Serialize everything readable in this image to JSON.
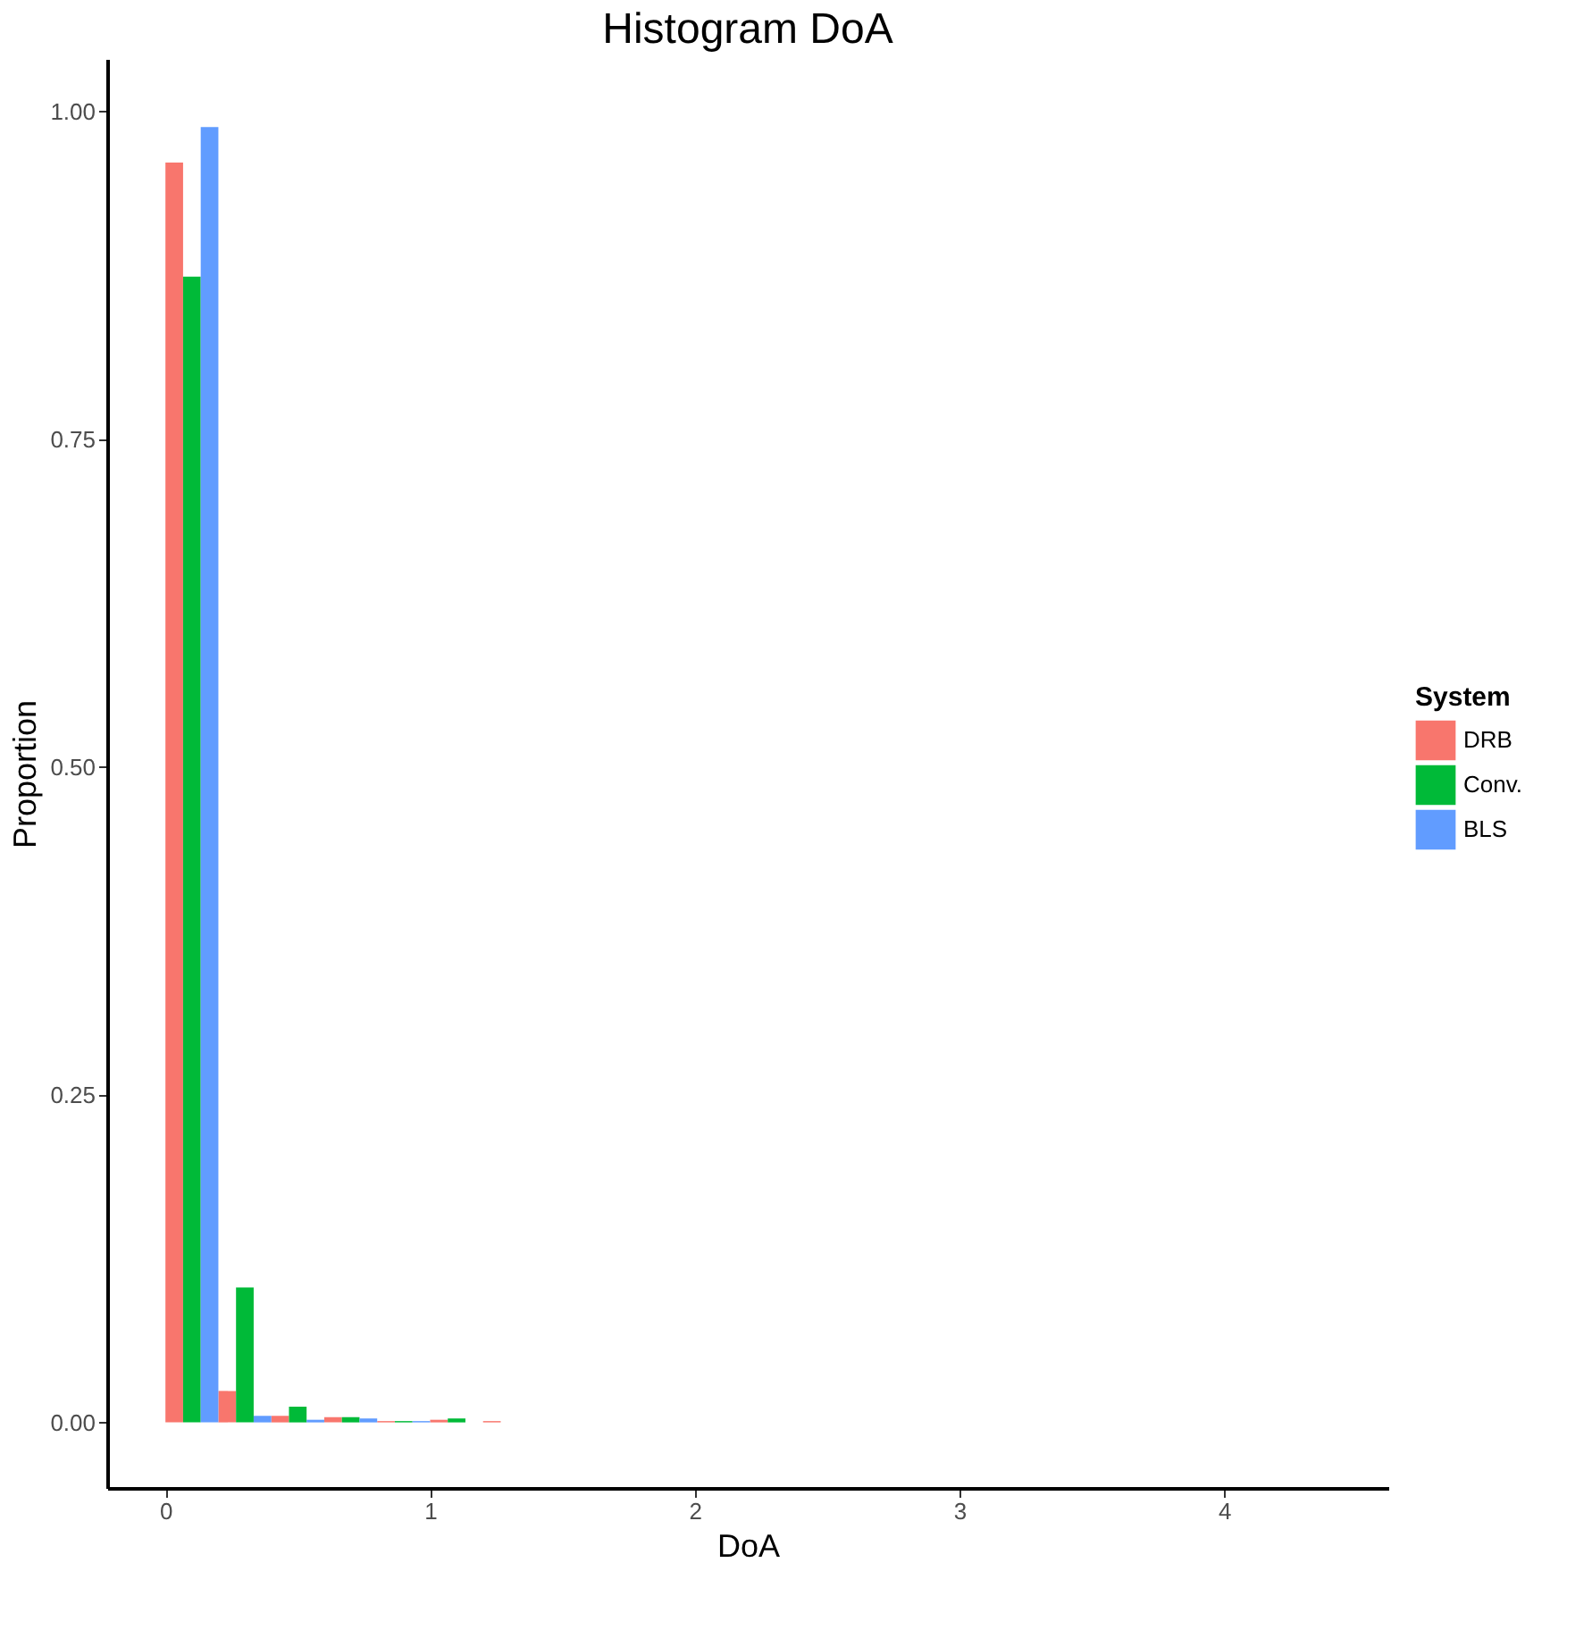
{
  "chart_data": {
    "type": "histogram",
    "title": "Histogram DoA",
    "xlabel": "DoA",
    "ylabel": "Proportion",
    "legend_title": "System",
    "bins": [
      0,
      0.2,
      0.4,
      0.6,
      0.8,
      1.0,
      1.2,
      1.4,
      1.6,
      1.8,
      2.0,
      2.2,
      2.4,
      2.6,
      2.8,
      3.0,
      3.2,
      3.4,
      3.6,
      3.8,
      4.0,
      4.2,
      4.4
    ],
    "series": [
      {
        "name": "DRB",
        "color": "#f8766d",
        "values": [
          0.961,
          0.024,
          0.005,
          0.004,
          0.001,
          0.002,
          0.001,
          0,
          0,
          0,
          0,
          0,
          0,
          0,
          0,
          0,
          0,
          0,
          0,
          0,
          0,
          0
        ]
      },
      {
        "name": "Conv.",
        "color": "#00ba38",
        "values": [
          0.874,
          0.103,
          0.012,
          0.004,
          0.001,
          0.003,
          0,
          0,
          0,
          0,
          0,
          0,
          0,
          0,
          0,
          0,
          0,
          0,
          0,
          0,
          0,
          0
        ]
      },
      {
        "name": "BLS",
        "color": "#619cff",
        "values": [
          0.988,
          0.005,
          0.002,
          0.003,
          0.001,
          0,
          0,
          0,
          0,
          0,
          0,
          0,
          0,
          0,
          0,
          0,
          0,
          0,
          0,
          0,
          0,
          0
        ]
      }
    ],
    "xlim": [
      -0.22,
      4.62
    ],
    "xticks": [
      0,
      1,
      2,
      3,
      4
    ],
    "ylim": [
      -0.05,
      1.04
    ],
    "yticks": [
      {
        "value": 0,
        "label": "0.00"
      },
      {
        "value": 0.25,
        "label": "0.25"
      },
      {
        "value": 0.5,
        "label": "0.50"
      },
      {
        "value": 0.75,
        "label": "0.75"
      },
      {
        "value": 1,
        "label": "1.00"
      }
    ],
    "grid": false,
    "legend": "right"
  }
}
